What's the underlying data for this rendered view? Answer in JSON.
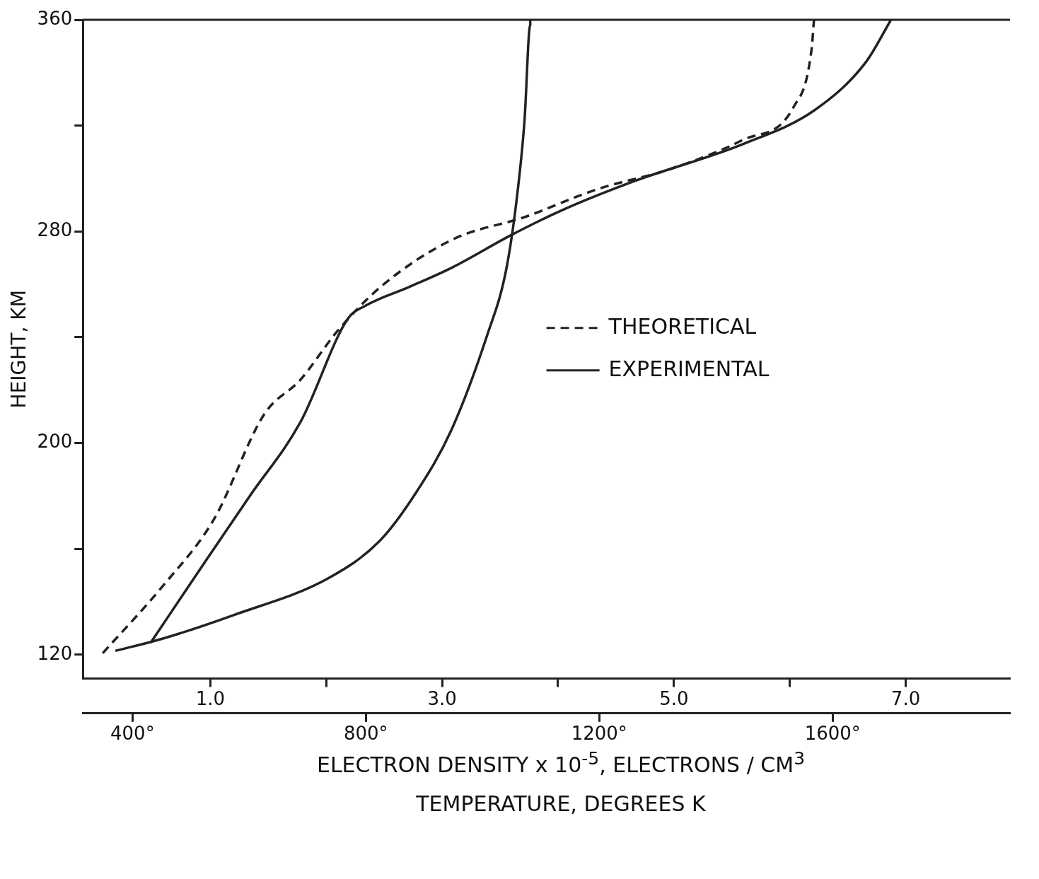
{
  "chart_data": {
    "type": "line",
    "xlabel": "TEMPERATURE,  DEGREES K",
    "x2label": "ELECTRON DENSITY x 10$^{-5}$,  ELECTRONS / CM$^{3}$",
    "ylabel": "HEIGHT, KM",
    "x2lim": [
      -0.1,
      7.9
    ],
    "x2ticks": [
      {
        "value": 1,
        "label": "1.0"
      },
      {
        "value": 2,
        "label": null
      },
      {
        "value": 3,
        "label": "3.0"
      },
      {
        "value": 4,
        "label": null
      },
      {
        "value": 5,
        "label": "5.0"
      },
      {
        "value": 6,
        "label": null
      },
      {
        "value": 7,
        "label": "7.0"
      }
    ],
    "xlim": [
      315,
      1904
    ],
    "xticks": [
      {
        "value": 400,
        "label": "400°"
      },
      {
        "value": 800,
        "label": "800°"
      },
      {
        "value": 1200,
        "label": "1200°"
      },
      {
        "value": 1600,
        "label": "1600°"
      }
    ],
    "ylim": [
      111,
      360
    ],
    "yticks": [
      120,
      {
        "value": 160,
        "label": null
      },
      200,
      {
        "value": 240,
        "label": null
      },
      280,
      {
        "value": 320,
        "label": null
      },
      360
    ],
    "grid": false,
    "legend": "center",
    "marker": "none",
    "series": [
      {
        "name": "THEORETICAL",
        "color": "#222222",
        "line_style": "dashed",
        "x": [
          349,
          452,
          539,
          626,
          688,
          750,
          825,
          949,
          1073,
          1197,
          1322,
          1446,
          1533,
          1564,
          1568
        ],
        "values": [
          120.6,
          146,
          171,
          211,
          224,
          242,
          259,
          277,
          285.5,
          296,
          303.6,
          314.6,
          327,
          349,
          360
        ]
      },
      {
        "name": "EXPERIMENTAL",
        "color": "#222222",
        "line_style": "solid",
        "x": [
          431,
          527,
          601,
          688,
          769,
          800,
          874,
          949,
          1048,
          1136,
          1260,
          1446,
          1570,
          1657,
          1700
        ],
        "values": [
          124.5,
          156,
          180,
          208,
          247,
          252,
          259,
          266.5,
          278.5,
          288,
          299,
          313,
          326,
          344,
          360
        ]
      },
      {
        "color": "#222222",
        "axis": "x2",
        "line_style": "solid",
        "x": [
          0.18,
          0.58,
          1.2,
          2.02,
          2.46,
          2.77,
          3.08,
          3.39,
          3.55,
          3.64,
          3.71,
          3.76,
          3.76
        ],
        "values": [
          121.5,
          126,
          135,
          149,
          163,
          181,
          205,
          241,
          265,
          291,
          321.5,
          358,
          360
        ]
      }
    ]
  }
}
